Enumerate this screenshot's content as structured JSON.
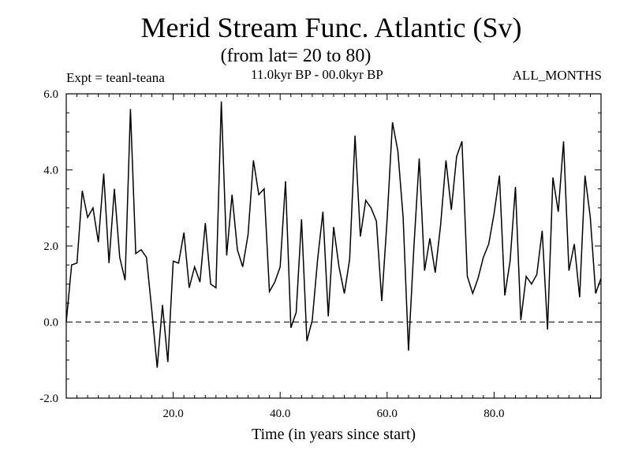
{
  "chart_data": {
    "type": "line",
    "title": "Merid Stream Func. Atlantic (Sv)",
    "subtitle": "(from lat= 20 to 80)",
    "experiment_label": "Expt = teanl-teana",
    "period_label": "11.0kyr BP - 00.0kyr BP",
    "months_label": "ALL_MONTHS",
    "xlabel": "Time (in years since start)",
    "ylabel": "",
    "xlim": [
      0,
      100
    ],
    "ylim": [
      -2.0,
      6.0
    ],
    "xticks": [
      20,
      40,
      60,
      80
    ],
    "xtick_labels": [
      "20.0",
      "40.0",
      "60.0",
      "80.0"
    ],
    "yticks": [
      -2,
      0,
      2,
      4,
      6
    ],
    "ytick_labels": [
      "-2.0",
      "0.0",
      "2.0",
      "4.0",
      "6.0"
    ],
    "reference_line": {
      "y": 0.0,
      "style": "dashed"
    },
    "grid": false,
    "series": [
      {
        "name": "Merid Stream Func.",
        "x": [
          0,
          1,
          2,
          3,
          4,
          5,
          6,
          7,
          8,
          9,
          10,
          11,
          12,
          13,
          14,
          15,
          16,
          17,
          18,
          19,
          20,
          21,
          22,
          23,
          24,
          25,
          26,
          27,
          28,
          29,
          30,
          31,
          32,
          33,
          34,
          35,
          36,
          37,
          38,
          39,
          40,
          41,
          42,
          43,
          44,
          45,
          46,
          47,
          48,
          49,
          50,
          51,
          52,
          53,
          54,
          55,
          56,
          57,
          58,
          59,
          60,
          61,
          62,
          63,
          64,
          65,
          66,
          67,
          68,
          69,
          70,
          71,
          72,
          73,
          74,
          75,
          76,
          77,
          78,
          79,
          80,
          81,
          82,
          83,
          84,
          85,
          86,
          87,
          88,
          89,
          90,
          91,
          92,
          93,
          94,
          95,
          96,
          97,
          98,
          99,
          100
        ],
        "values": [
          0.0,
          1.5,
          1.55,
          3.45,
          2.75,
          3.0,
          2.1,
          3.9,
          1.55,
          3.5,
          1.7,
          1.1,
          5.6,
          1.8,
          1.9,
          1.7,
          0.3,
          -1.2,
          0.45,
          -1.05,
          1.6,
          1.55,
          2.35,
          0.9,
          1.45,
          1.05,
          2.6,
          1.0,
          0.9,
          5.8,
          1.75,
          3.35,
          1.9,
          1.45,
          2.3,
          4.25,
          3.35,
          3.5,
          0.8,
          1.05,
          1.45,
          3.7,
          -0.15,
          0.25,
          2.7,
          -0.5,
          0.05,
          1.65,
          2.9,
          0.15,
          2.5,
          1.45,
          0.75,
          1.65,
          4.9,
          2.25,
          3.2,
          3.0,
          2.65,
          0.55,
          2.7,
          5.25,
          4.5,
          2.75,
          -0.75,
          1.95,
          4.3,
          1.35,
          2.2,
          1.3,
          2.55,
          4.25,
          2.95,
          4.35,
          4.75,
          1.2,
          0.75,
          1.15,
          1.7,
          2.05,
          2.85,
          3.85,
          0.7,
          1.6,
          3.55,
          0.05,
          1.2,
          1.0,
          1.25,
          2.4,
          -0.2,
          3.8,
          2.9,
          4.75,
          1.35,
          2.05,
          0.65,
          3.85,
          2.75,
          0.75,
          1.15
        ]
      }
    ]
  }
}
